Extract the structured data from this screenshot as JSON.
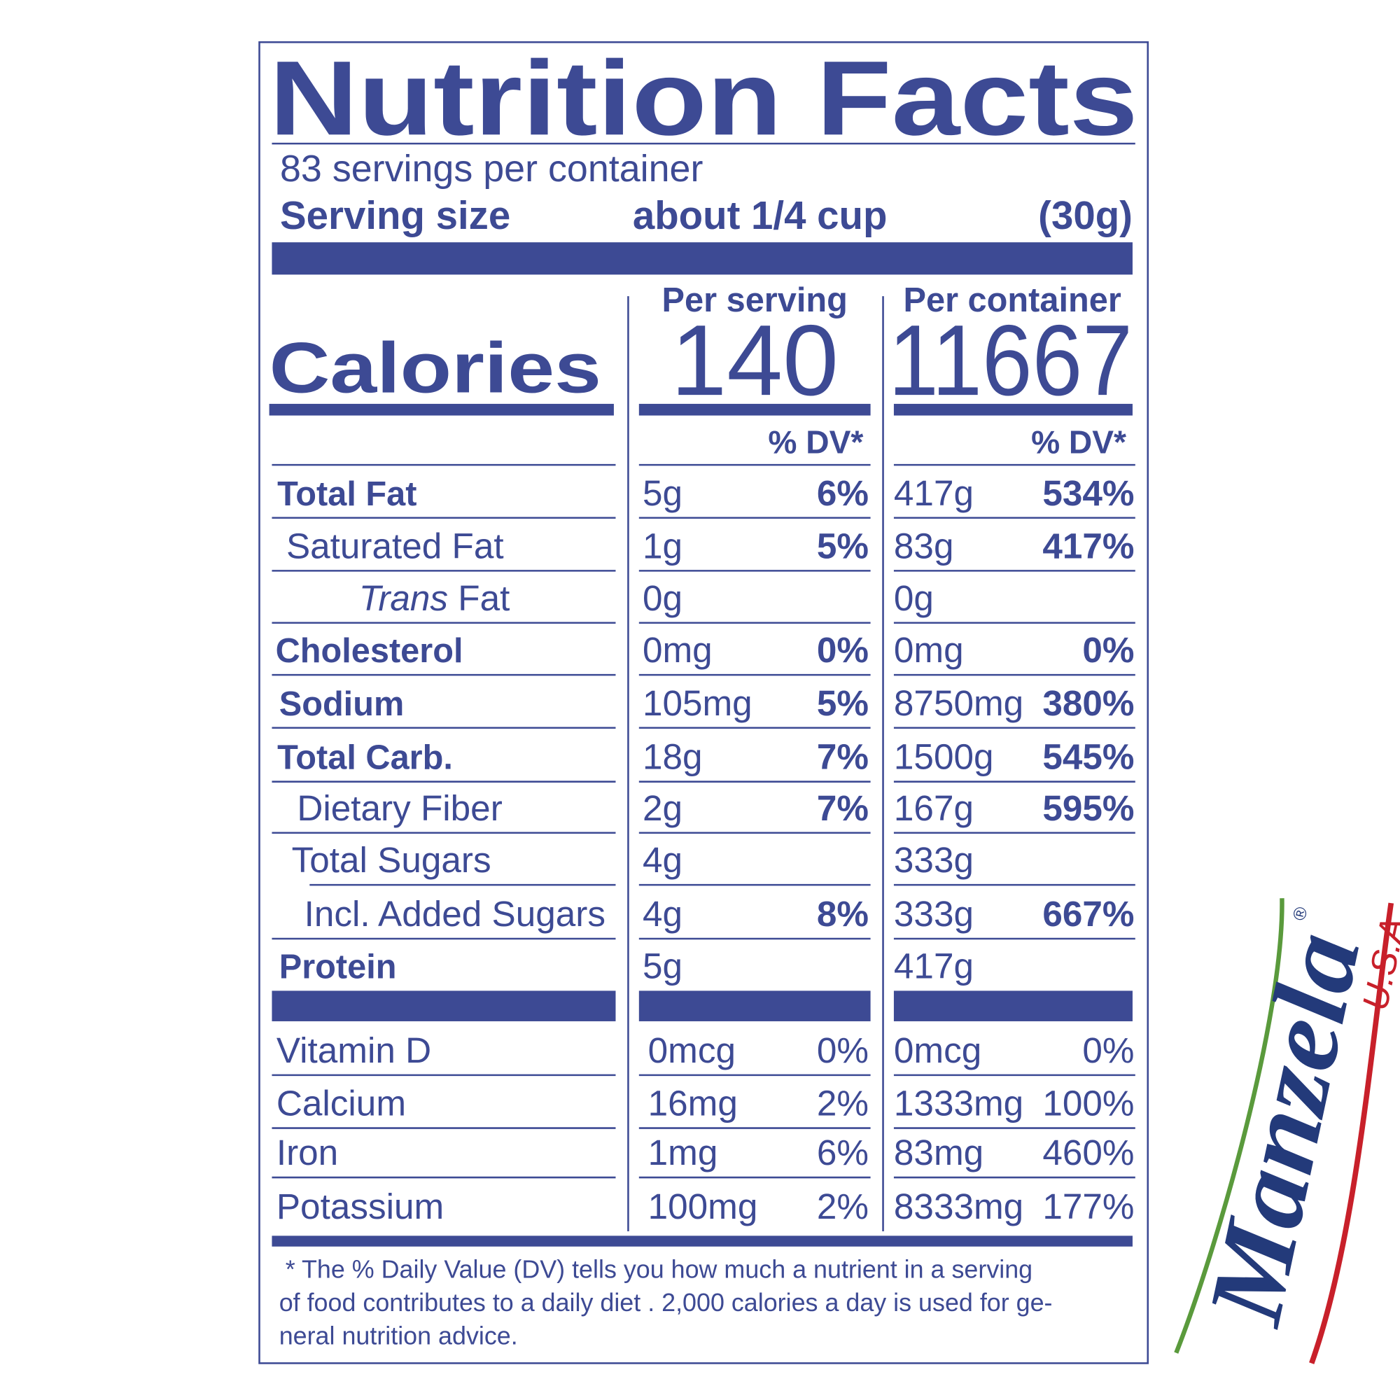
{
  "title": "Nutrition Facts",
  "servings": "83 servings per container",
  "serving_size": {
    "label": "Serving size",
    "amount": "about 1/4 cup",
    "grams": "(30g)"
  },
  "headers": {
    "per_serving": "Per serving",
    "per_container": "Per container",
    "dv": "% DV*"
  },
  "calories": {
    "label": "Calories",
    "per_serving": "140",
    "per_container": "11667"
  },
  "rows": [
    {
      "name": "Total Fat",
      "serving": "5g",
      "serving_dv": "6%",
      "container": "417g",
      "container_dv": "534%"
    },
    {
      "name": "Saturated Fat",
      "serving": "1g",
      "serving_dv": "5%",
      "container": "83g",
      "container_dv": "417%"
    },
    {
      "name_italic": "Trans",
      "name": " Fat",
      "serving": "0g",
      "container": "0g"
    },
    {
      "name": "Cholesterol",
      "serving": "0mg",
      "serving_dv": "0%",
      "container": "0mg",
      "container_dv": "0%"
    },
    {
      "name": "Sodium",
      "serving": "105mg",
      "serving_dv": "5%",
      "container": "8750mg",
      "container_dv": "380%"
    },
    {
      "name": "Total Carb.",
      "serving": "18g",
      "serving_dv": "7%",
      "container": "1500g",
      "container_dv": "545%"
    },
    {
      "name": "Dietary Fiber",
      "serving": "2g",
      "serving_dv": "7%",
      "container": "167g",
      "container_dv": "595%"
    },
    {
      "name": "Total Sugars",
      "serving": "4g",
      "container": "333g"
    },
    {
      "name": "Incl. Added Sugars",
      "serving": "4g",
      "serving_dv": "8%",
      "container": "333g",
      "container_dv": "667%"
    },
    {
      "name": "Protein",
      "serving": "5g",
      "container": "417g"
    }
  ],
  "vitamins": [
    {
      "name": "Vitamin D",
      "serving": "0mcg",
      "serving_dv": "0%",
      "container": "0mcg",
      "container_dv": "0%"
    },
    {
      "name": "Calcium",
      "serving": "16mg",
      "serving_dv": "2%",
      "container": "1333mg",
      "container_dv": "100%"
    },
    {
      "name": "Iron",
      "serving": "1mg",
      "serving_dv": "6%",
      "container": "83mg",
      "container_dv": "460%"
    },
    {
      "name": "Potassium",
      "serving": "100mg",
      "serving_dv": "2%",
      "container": "8333mg",
      "container_dv": "177%"
    }
  ],
  "footnote": [
    "*  The  % Daily Value (DV) tells you how much a nutrient in a serving",
    "of food contributes to a daily diet . 2,000 calories a day is used for ge-",
    "neral nutrition advice."
  ],
  "logo": {
    "brand": "Manzela",
    "registered": "®",
    "country": "U.S.A."
  }
}
